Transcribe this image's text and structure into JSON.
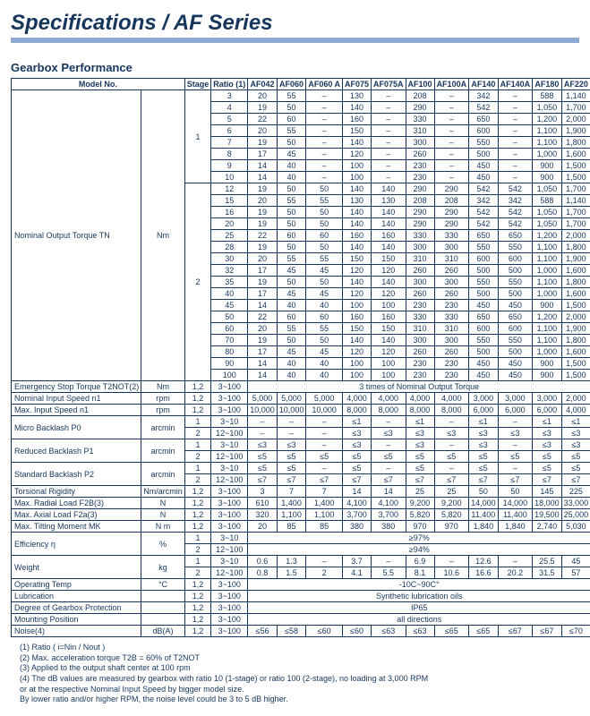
{
  "title": "Specifications / AF Series",
  "section": "Gearbox Performance",
  "headers": {
    "model_no": "Model No.",
    "stage": "Stage",
    "ratio": "Ratio (1)",
    "cols": [
      "AF042",
      "AF060",
      "AF060 A",
      "AF075",
      "AF075A",
      "AF100",
      "AF100A",
      "AF140",
      "AF140A",
      "AF180",
      "AF220"
    ]
  },
  "nominal_output_torque": {
    "label": "Nominal Output Torque TN",
    "unit": "Nm",
    "stage1": [
      {
        "ratio": "3",
        "v": [
          "20",
          "55",
          "–",
          "130",
          "–",
          "208",
          "–",
          "342",
          "–",
          "588",
          "1,140"
        ]
      },
      {
        "ratio": "4",
        "v": [
          "19",
          "50",
          "–",
          "140",
          "–",
          "290",
          "–",
          "542",
          "–",
          "1,050",
          "1,700"
        ]
      },
      {
        "ratio": "5",
        "v": [
          "22",
          "60",
          "–",
          "160",
          "–",
          "330",
          "–",
          "650",
          "–",
          "1,200",
          "2,000"
        ]
      },
      {
        "ratio": "6",
        "v": [
          "20",
          "55",
          "–",
          "150",
          "–",
          "310",
          "–",
          "600",
          "–",
          "1,100",
          "1,900"
        ]
      },
      {
        "ratio": "7",
        "v": [
          "19",
          "50",
          "–",
          "140",
          "–",
          "300",
          "–",
          "550",
          "–",
          "1,100",
          "1,800"
        ]
      },
      {
        "ratio": "8",
        "v": [
          "17",
          "45",
          "–",
          "120",
          "–",
          "260",
          "–",
          "500",
          "–",
          "1,000",
          "1,600"
        ]
      },
      {
        "ratio": "9",
        "v": [
          "14",
          "40",
          "–",
          "100",
          "–",
          "230",
          "–",
          "450",
          "–",
          "900",
          "1,500"
        ]
      },
      {
        "ratio": "10",
        "v": [
          "14",
          "40",
          "–",
          "100",
          "–",
          "230",
          "–",
          "450",
          "–",
          "900",
          "1,500"
        ]
      }
    ],
    "stage2": [
      {
        "ratio": "12",
        "v": [
          "19",
          "50",
          "50",
          "140",
          "140",
          "290",
          "290",
          "542",
          "542",
          "1,050",
          "1,700"
        ]
      },
      {
        "ratio": "15",
        "v": [
          "20",
          "55",
          "55",
          "130",
          "130",
          "208",
          "208",
          "342",
          "342",
          "588",
          "1,140"
        ]
      },
      {
        "ratio": "16",
        "v": [
          "19",
          "50",
          "50",
          "140",
          "140",
          "290",
          "290",
          "542",
          "542",
          "1,050",
          "1,700"
        ]
      },
      {
        "ratio": "20",
        "v": [
          "19",
          "50",
          "50",
          "140",
          "140",
          "290",
          "290",
          "542",
          "542",
          "1,050",
          "1,700"
        ]
      },
      {
        "ratio": "25",
        "v": [
          "22",
          "60",
          "60",
          "160",
          "160",
          "330",
          "330",
          "650",
          "650",
          "1,200",
          "2,000"
        ]
      },
      {
        "ratio": "28",
        "v": [
          "19",
          "50",
          "50",
          "140",
          "140",
          "300",
          "300",
          "550",
          "550",
          "1,100",
          "1,800"
        ]
      },
      {
        "ratio": "30",
        "v": [
          "20",
          "55",
          "55",
          "150",
          "150",
          "310",
          "310",
          "600",
          "600",
          "1,100",
          "1,900"
        ]
      },
      {
        "ratio": "32",
        "v": [
          "17",
          "45",
          "45",
          "120",
          "120",
          "260",
          "260",
          "500",
          "500",
          "1,000",
          "1,600"
        ]
      },
      {
        "ratio": "35",
        "v": [
          "19",
          "50",
          "50",
          "140",
          "140",
          "300",
          "300",
          "550",
          "550",
          "1,100",
          "1,800"
        ]
      },
      {
        "ratio": "40",
        "v": [
          "17",
          "45",
          "45",
          "120",
          "120",
          "260",
          "260",
          "500",
          "500",
          "1,000",
          "1,600"
        ]
      },
      {
        "ratio": "45",
        "v": [
          "14",
          "40",
          "40",
          "100",
          "100",
          "230",
          "230",
          "450",
          "450",
          "900",
          "1,500"
        ]
      },
      {
        "ratio": "50",
        "v": [
          "22",
          "60",
          "60",
          "160",
          "160",
          "330",
          "330",
          "650",
          "650",
          "1,200",
          "2,000"
        ]
      },
      {
        "ratio": "60",
        "v": [
          "20",
          "55",
          "55",
          "150",
          "150",
          "310",
          "310",
          "600",
          "600",
          "1,100",
          "1,900"
        ]
      },
      {
        "ratio": "70",
        "v": [
          "19",
          "50",
          "50",
          "140",
          "140",
          "300",
          "300",
          "550",
          "550",
          "1,100",
          "1,800"
        ]
      },
      {
        "ratio": "80",
        "v": [
          "17",
          "45",
          "45",
          "120",
          "120",
          "260",
          "260",
          "500",
          "500",
          "1,000",
          "1,600"
        ]
      },
      {
        "ratio": "90",
        "v": [
          "14",
          "40",
          "40",
          "100",
          "100",
          "230",
          "230",
          "450",
          "450",
          "900",
          "1,500"
        ]
      },
      {
        "ratio": "100",
        "v": [
          "14",
          "40",
          "40",
          "100",
          "100",
          "230",
          "230",
          "450",
          "450",
          "900",
          "1,500"
        ]
      }
    ]
  },
  "single_rows": [
    {
      "label": "Emergency Stop Torque T2NOT(2)",
      "unit": "Nm",
      "stage": "1,2",
      "ratio": "3~100",
      "span": "3 times of Nominal Output Torque"
    },
    {
      "label": "Nominal Input Speed n1",
      "unit": "rpm",
      "stage": "1,2",
      "ratio": "3~100",
      "v": [
        "5,000",
        "5,000",
        "5,000",
        "4,000",
        "4,000",
        "4,000",
        "4,000",
        "3,000",
        "3,000",
        "3,000",
        "2,000"
      ]
    },
    {
      "label": "Max. Input Speed n1",
      "unit": "rpm",
      "stage": "1,2",
      "ratio": "3~100",
      "v": [
        "10,000",
        "10,000",
        "10,000",
        "8,000",
        "8,000",
        "8,000",
        "8,000",
        "6,000",
        "6,000",
        "6,000",
        "4,000"
      ]
    }
  ],
  "backlash_rows": [
    {
      "label": "Micro Backlash P0",
      "unit": "arcmin",
      "rows": [
        {
          "stage": "1",
          "ratio": "3~10",
          "v": [
            "–",
            "–",
            "–",
            "≤1",
            "–",
            "≤1",
            "–",
            "≤1",
            "–",
            "≤1",
            "≤1"
          ]
        },
        {
          "stage": "2",
          "ratio": "12~100",
          "v": [
            "–",
            "–",
            "–",
            "≤3",
            "≤3",
            "≤3",
            "≤3",
            "≤3",
            "≤3",
            "≤3",
            "≤3"
          ]
        }
      ]
    },
    {
      "label": "Reduced Backlash P1",
      "unit": "arcmin",
      "rows": [
        {
          "stage": "1",
          "ratio": "3~10",
          "v": [
            "≤3",
            "≤3",
            "–",
            "≤3",
            "–",
            "≤3",
            "–",
            "≤3",
            "–",
            "≤3",
            "≤3"
          ]
        },
        {
          "stage": "2",
          "ratio": "12~100",
          "v": [
            "≤5",
            "≤5",
            "≤5",
            "≤5",
            "≤5",
            "≤5",
            "≤5",
            "≤5",
            "≤5",
            "≤5",
            "≤5"
          ]
        }
      ]
    },
    {
      "label": "Standard Backlash P2",
      "unit": "arcmin",
      "rows": [
        {
          "stage": "1",
          "ratio": "3~10",
          "v": [
            "≤5",
            "≤5",
            "–",
            "≤5",
            "–",
            "≤5",
            "–",
            "≤5",
            "–",
            "≤5",
            "≤5"
          ]
        },
        {
          "stage": "2",
          "ratio": "12~100",
          "v": [
            "≤7",
            "≤7",
            "≤7",
            "≤7",
            "≤7",
            "≤7",
            "≤7",
            "≤7",
            "≤7",
            "≤7",
            "≤7"
          ]
        }
      ]
    }
  ],
  "more_rows": [
    {
      "label": "Torsional Rigidity",
      "unit": "Nm/arcmin",
      "stage": "1,2",
      "ratio": "3~100",
      "v": [
        "3",
        "7",
        "7",
        "14",
        "14",
        "25",
        "25",
        "50",
        "50",
        "145",
        "225"
      ]
    },
    {
      "label": "Max. Radial Load F2B(3)",
      "unit": "N",
      "stage": "1,2",
      "ratio": "3~100",
      "v": [
        "610",
        "1,400",
        "1,400",
        "4,100",
        "4,100",
        "9,200",
        "9,200",
        "14,000",
        "14,000",
        "18,000",
        "33,000"
      ]
    },
    {
      "label": "Max. Axial Load F2a(3)",
      "unit": "N",
      "stage": "1,2",
      "ratio": "3~100",
      "v": [
        "320",
        "1,100",
        "1,100",
        "3,700",
        "3,700",
        "5,820",
        "5,820",
        "11,400",
        "11,400",
        "19,500",
        "25,000"
      ]
    },
    {
      "label": "Max. Tilting Moment MK",
      "unit": "N m",
      "stage": "1,2",
      "ratio": "3~100",
      "v": [
        "20",
        "85",
        "85",
        "380",
        "380",
        "970",
        "970",
        "1,840",
        "1,840",
        "2,740",
        "5,030"
      ]
    }
  ],
  "efficiency": {
    "label": "Efficiency η",
    "unit": "%",
    "rows": [
      {
        "stage": "1",
        "ratio": "3~10",
        "span": "≥97%"
      },
      {
        "stage": "2",
        "ratio": "12~100",
        "span": "≥94%"
      }
    ]
  },
  "weight": {
    "label": "Weight",
    "unit": "kg",
    "rows": [
      {
        "stage": "1",
        "ratio": "3~10",
        "v": [
          "0.6",
          "1.3",
          "–",
          "3.7",
          "–",
          "6.9",
          "–",
          "12.6",
          "–",
          "25.5",
          "45"
        ]
      },
      {
        "stage": "2",
        "ratio": "12~100",
        "v": [
          "0.8",
          "1.5",
          "2",
          "4.1",
          "5.5",
          "8.1",
          "10.6",
          "16.6",
          "20.2",
          "31.5",
          "57"
        ]
      }
    ]
  },
  "bottom_rows": [
    {
      "label": "Operating Temp",
      "unit": "°C",
      "stage": "1,2",
      "ratio": "3~100",
      "span": "-10C~90C°"
    },
    {
      "label": "Lubrication",
      "unit": "",
      "stage": "1,2",
      "ratio": "3~100",
      "span": "Synthetic lubrication oils"
    },
    {
      "label": "Degree of Gearbox Protection",
      "unit": "",
      "stage": "1,2",
      "ratio": "3~100",
      "span": "IP65"
    },
    {
      "label": "Mounting Position",
      "unit": "",
      "stage": "1,2",
      "ratio": "3~100",
      "span": "all directions"
    },
    {
      "label": "Noise(4)",
      "unit": "dB(A)",
      "stage": "1,2",
      "ratio": "3~100",
      "v": [
        "≤56",
        "≤58",
        "≤60",
        "≤60",
        "≤63",
        "≤63",
        "≤65",
        "≤65",
        "≤67",
        "≤67",
        "≤70"
      ]
    }
  ],
  "footnotes": [
    "(1) Ratio ( i=Nin / Nout )",
    "(2) Max. acceleration torque T2B = 60% of T2NOT",
    "(3) Applied to the output shaft center at 100 rpm",
    "(4) The dB values are measured by gearbox with ratio 10 (1-stage) or ratio 100 (2-stage), no loading at 3,000 RPM",
    "     or at the respective Nominal Input Speed by bigger model size.",
    "     By lower ratio and/or higher RPM, the noise level could be 3 to 5 dB higher."
  ]
}
